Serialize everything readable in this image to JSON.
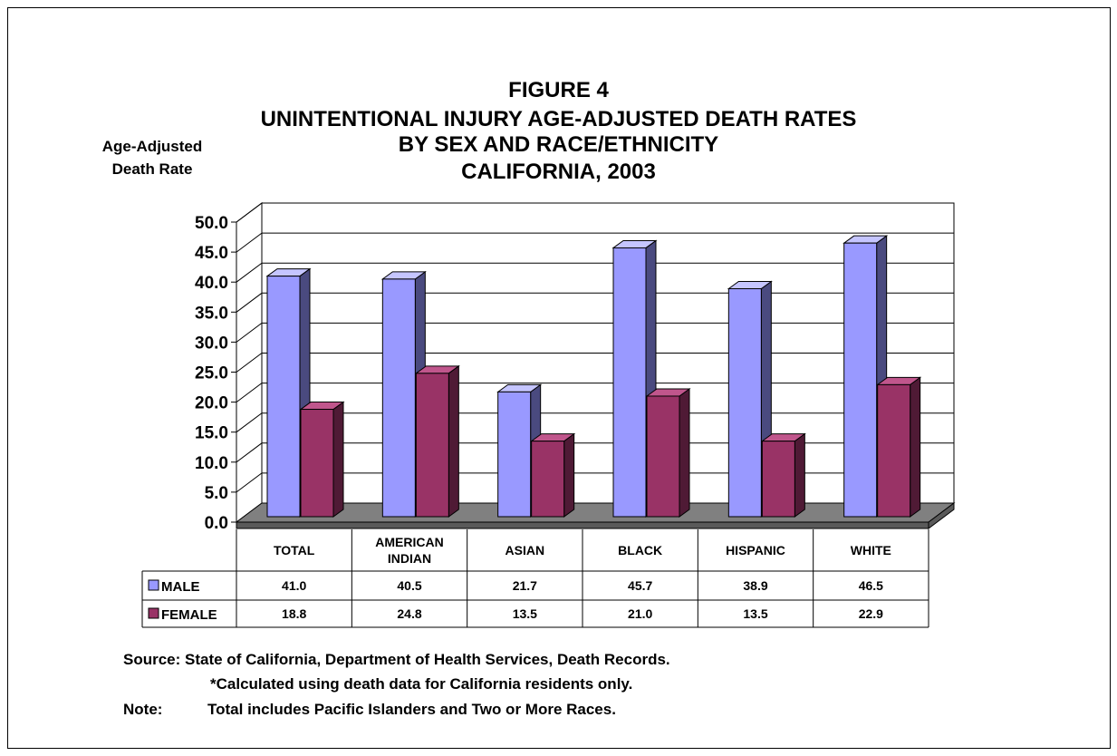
{
  "chart_data": {
    "type": "bar",
    "title_lines": [
      "FIGURE 4",
      "UNINTENTIONAL INJURY AGE-ADJUSTED DEATH RATES",
      "BY SEX AND RACE/ETHNICITY",
      "CALIFORNIA, 2003"
    ],
    "ylabel_lines": [
      "Age-Adjusted",
      "Death Rate"
    ],
    "ylim": [
      0,
      50
    ],
    "ytick_step": 5,
    "ytick_labels": [
      "0.0",
      "5.0",
      "10.0",
      "15.0",
      "20.0",
      "25.0",
      "30.0",
      "35.0",
      "40.0",
      "45.0",
      "50.0"
    ],
    "categories": [
      "TOTAL",
      "AMERICAN INDIAN",
      "ASIAN",
      "BLACK",
      "HISPANIC",
      "WHITE"
    ],
    "category_label_lines": [
      [
        "TOTAL"
      ],
      [
        "AMERICAN",
        "INDIAN"
      ],
      [
        "ASIAN"
      ],
      [
        "BLACK"
      ],
      [
        "HISPANIC"
      ],
      [
        "WHITE"
      ]
    ],
    "series": [
      {
        "name": "MALE",
        "color": "#9999ff",
        "side_color": "#4a4a7f",
        "top_color": "#c5c5ff",
        "values": [
          41.0,
          40.5,
          21.7,
          45.7,
          38.9,
          46.5
        ],
        "value_labels": [
          "41.0",
          "40.5",
          "21.7",
          "45.7",
          "38.9",
          "46.5"
        ]
      },
      {
        "name": "FEMALE",
        "color": "#993366",
        "side_color": "#4f1a35",
        "top_color": "#c0568c",
        "values": [
          18.8,
          24.8,
          13.5,
          21.0,
          13.5,
          22.9
        ],
        "value_labels": [
          "18.8",
          "24.8",
          "13.5",
          "21.0",
          "13.5",
          "22.9"
        ]
      }
    ],
    "floor_color": "#808080",
    "grid": true,
    "legend_placement": "data-table"
  },
  "notes": {
    "source": "Source: State of California, Department of Health Services, Death Records.",
    "calc": "*Calculated using death data for California residents only.",
    "note_label": "Note:",
    "note_text": "Total includes Pacific Islanders and Two or More Races."
  }
}
